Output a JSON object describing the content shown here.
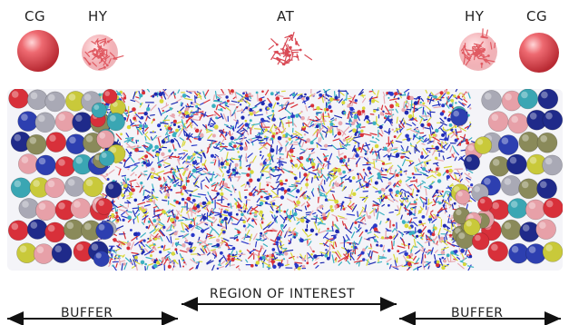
{
  "labels": {
    "cg_left": "CG",
    "hy_left": "HY",
    "at": "AT",
    "hy_right": "HY",
    "cg_right": "CG",
    "region_of_interest": "REGION OF INTEREST",
    "buffer_left": "BUFFER",
    "buffer_right": "BUFFER"
  },
  "palette": {
    "cg_sphere": "#e0454e",
    "hy_molecule": "#e05a62",
    "at_molecule": "#d94a55",
    "arrow": "#111111",
    "bead_colors": [
      "#2d3fb0",
      "#c9c93a",
      "#3aa6b3",
      "#e7a0a8",
      "#d8303a",
      "#8a8a5a",
      "#a9a9b5",
      "#1f2a8a"
    ],
    "atom_colors": [
      "#2a38c8",
      "#d8d83a",
      "#e8a8b0",
      "#3ab0c0",
      "#d83038",
      "#1e2ab0"
    ]
  }
}
